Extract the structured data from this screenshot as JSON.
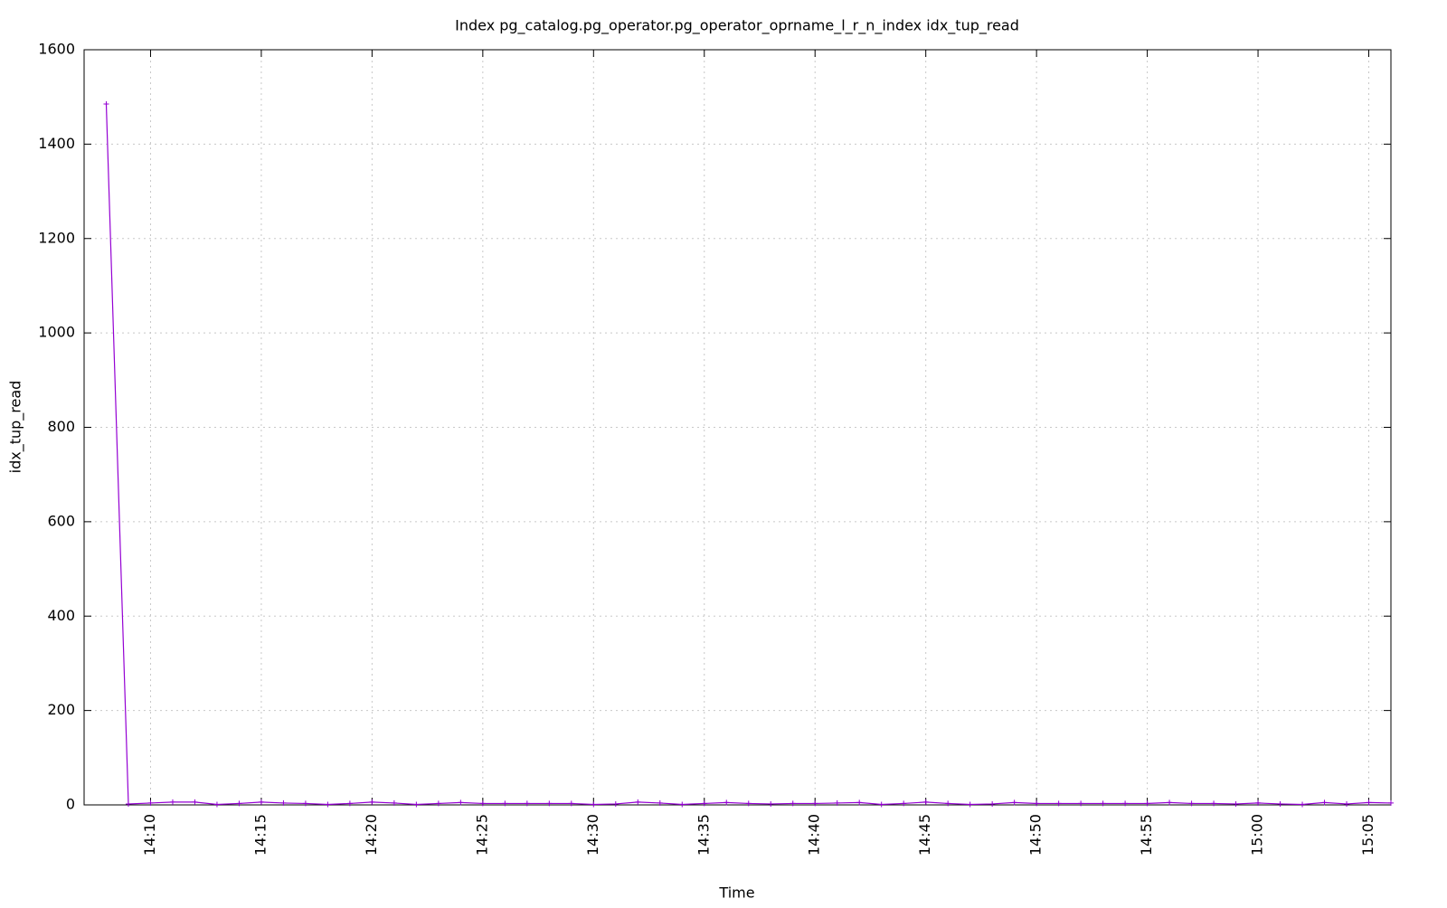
{
  "chart_data": {
    "type": "line",
    "title": "Index pg_catalog.pg_operator.pg_operator_oprname_l_r_n_index idx_tup_read",
    "x_label": "Time",
    "y_label": "idx_tup_read",
    "x": [
      "14:08",
      "14:09",
      "14:10",
      "14:11",
      "14:12",
      "14:13",
      "14:14",
      "14:15",
      "14:16",
      "14:17",
      "14:18",
      "14:19",
      "14:20",
      "14:21",
      "14:22",
      "14:23",
      "14:24",
      "14:25",
      "14:26",
      "14:27",
      "14:28",
      "14:29",
      "14:30",
      "14:31",
      "14:32",
      "14:33",
      "14:34",
      "14:35",
      "14:36",
      "14:37",
      "14:38",
      "14:39",
      "14:40",
      "14:41",
      "14:42",
      "14:43",
      "14:44",
      "14:45",
      "14:46",
      "14:47",
      "14:48",
      "14:49",
      "14:50",
      "14:51",
      "14:52",
      "14:53",
      "14:54",
      "14:55",
      "14:56",
      "14:57",
      "14:58",
      "14:59",
      "15:00",
      "15:01",
      "15:02",
      "15:03",
      "15:04",
      "15:05",
      "15:06"
    ],
    "series": [
      {
        "name": "idx_tup_read",
        "color": "#9400d3",
        "values": [
          1485,
          2,
          4,
          6,
          6,
          1,
          3,
          6,
          4,
          3,
          1,
          3,
          6,
          4,
          1,
          3,
          5,
          3,
          3,
          3,
          3,
          3,
          1,
          2,
          6,
          4,
          1,
          3,
          5,
          3,
          2,
          3,
          3,
          4,
          5,
          1,
          3,
          6,
          3,
          1,
          2,
          5,
          3,
          3,
          3,
          3,
          3,
          3,
          5,
          3,
          3,
          2,
          4,
          2,
          1,
          5,
          2,
          5,
          4
        ]
      }
    ],
    "xlim": [
      "14:07",
      "15:06"
    ],
    "xticks": [
      "14:10",
      "14:15",
      "14:20",
      "14:25",
      "14:30",
      "14:35",
      "14:40",
      "14:45",
      "14:50",
      "14:55",
      "15:00",
      "15:05"
    ],
    "ylim": [
      0,
      1600
    ],
    "yticks": [
      0,
      200,
      400,
      600,
      800,
      1000,
      1200,
      1400,
      1600
    ],
    "grid": true
  }
}
